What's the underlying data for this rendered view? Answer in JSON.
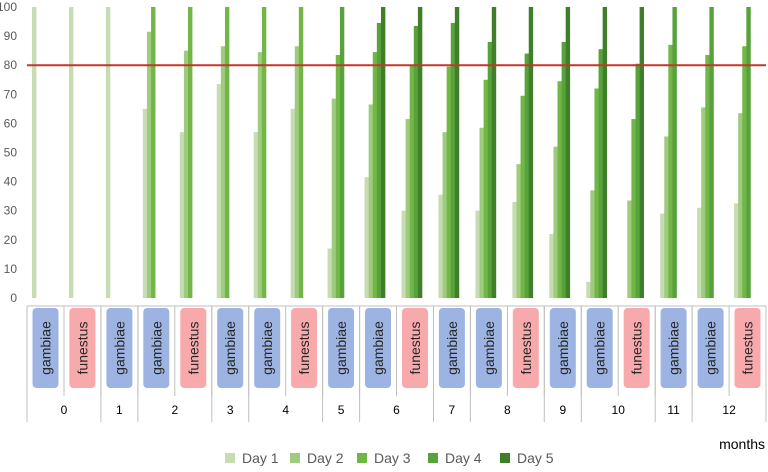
{
  "chart_data": {
    "type": "bar",
    "title": "",
    "xlabel": "months",
    "ylabel": "",
    "ylim": [
      0,
      100
    ],
    "yticks": [
      0,
      10,
      20,
      30,
      40,
      50,
      60,
      70,
      80,
      90,
      100
    ],
    "grid": false,
    "legend_position": "bottom",
    "reference_line": {
      "value": 80,
      "color": "#c0392b"
    },
    "species_colors": {
      "gambiae": "#9db4e3",
      "funestus": "#f8a9ab"
    },
    "series": [
      {
        "name": "Day 1",
        "color": "#c7dcb3"
      },
      {
        "name": "Day 2",
        "color": "#9fcb7e"
      },
      {
        "name": "Day 3",
        "color": "#72b647"
      },
      {
        "name": "Day 4",
        "color": "#57a23a"
      },
      {
        "name": "Day 5",
        "color": "#3f7f2a"
      }
    ],
    "groups": [
      {
        "month": "0",
        "species": "gambiae",
        "values": [
          100,
          null,
          null,
          null,
          null
        ]
      },
      {
        "month": "0",
        "species": "funestus",
        "values": [
          100,
          null,
          null,
          null,
          null
        ]
      },
      {
        "month": "1",
        "species": "gambiae",
        "values": [
          100,
          null,
          null,
          null,
          null
        ]
      },
      {
        "month": "2",
        "species": "gambiae",
        "values": [
          65,
          91.5,
          100,
          null,
          null
        ]
      },
      {
        "month": "2",
        "species": "funestus",
        "values": [
          57,
          85,
          100,
          null,
          null
        ]
      },
      {
        "month": "3",
        "species": "gambiae",
        "values": [
          73.5,
          86.5,
          100,
          null,
          null
        ]
      },
      {
        "month": "4",
        "species": "gambiae",
        "values": [
          57,
          84.5,
          100,
          null,
          null
        ]
      },
      {
        "month": "4",
        "species": "funestus",
        "values": [
          65,
          86.5,
          100,
          null,
          null
        ]
      },
      {
        "month": "5",
        "species": "gambiae",
        "values": [
          17,
          68.5,
          83.5,
          100,
          null
        ]
      },
      {
        "month": "6",
        "species": "gambiae",
        "values": [
          41.5,
          66.5,
          84.5,
          94.5,
          100
        ]
      },
      {
        "month": "6",
        "species": "funestus",
        "values": [
          30,
          61.5,
          80,
          93.5,
          100
        ]
      },
      {
        "month": "7",
        "species": "gambiae",
        "values": [
          35.5,
          57,
          79.5,
          94.5,
          100
        ]
      },
      {
        "month": "8",
        "species": "gambiae",
        "values": [
          30,
          58.5,
          75,
          88,
          100
        ]
      },
      {
        "month": "8",
        "species": "funestus",
        "values": [
          33,
          46,
          69.5,
          84,
          100
        ]
      },
      {
        "month": "9",
        "species": "gambiae",
        "values": [
          22,
          52,
          74.5,
          88,
          100
        ]
      },
      {
        "month": "10",
        "species": "gambiae",
        "values": [
          5.5,
          37,
          72,
          85.5,
          100
        ]
      },
      {
        "month": "10",
        "species": "funestus",
        "values": [
          null,
          33.5,
          61.5,
          80.5,
          100
        ]
      },
      {
        "month": "11",
        "species": "gambiae",
        "values": [
          29,
          55.5,
          87,
          100,
          null
        ]
      },
      {
        "month": "12",
        "species": "gambiae",
        "values": [
          31,
          65.5,
          83.5,
          100,
          null
        ]
      },
      {
        "month": "12",
        "species": "funestus",
        "values": [
          32.5,
          63.5,
          86.5,
          100,
          null
        ]
      }
    ],
    "months": [
      "0",
      "1",
      "2",
      "3",
      "4",
      "5",
      "6",
      "7",
      "8",
      "9",
      "10",
      "11",
      "12"
    ]
  }
}
